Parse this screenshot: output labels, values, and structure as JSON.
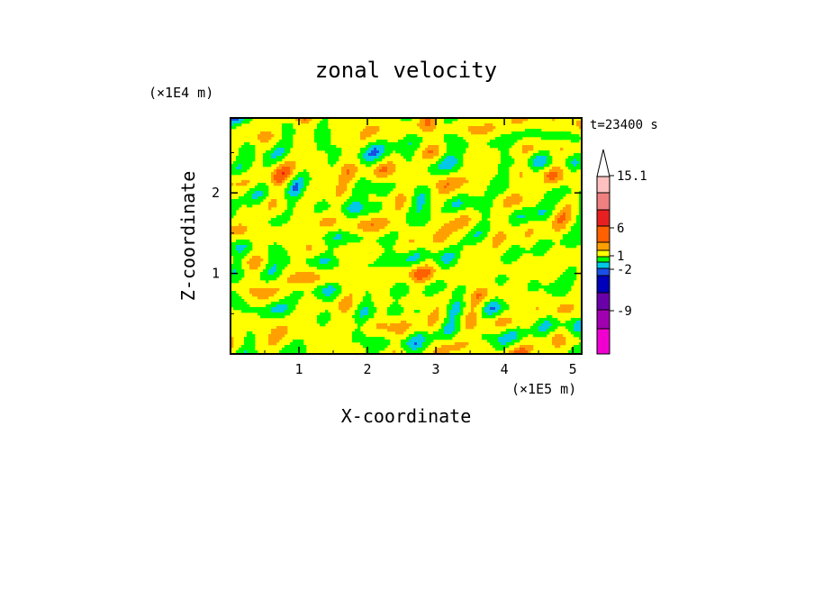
{
  "chart_data": {
    "type": "heatmap",
    "title": "zonal velocity",
    "xlabel": "X-coordinate",
    "ylabel": "Z-coordinate",
    "x_unit": "(×1E5 m)",
    "y_unit": "(×1E4 m)",
    "time_label": "t=23400 s",
    "xlim": [
      0,
      5.13
    ],
    "ylim": [
      0,
      2.93
    ],
    "x_ticks": [
      {
        "value": 1,
        "label": "1"
      },
      {
        "value": 2,
        "label": "2"
      },
      {
        "value": 3,
        "label": "3"
      },
      {
        "value": 4,
        "label": "4"
      },
      {
        "value": 5,
        "label": "5"
      }
    ],
    "y_ticks": [
      {
        "value": 1,
        "label": "1"
      },
      {
        "value": 2,
        "label": "2"
      }
    ],
    "colorbar": {
      "levels": [
        {
          "color": "#f000d0"
        },
        {
          "color": "#a000b0"
        },
        {
          "color": "#6a00a8"
        },
        {
          "color": "#0000b8"
        },
        {
          "color": "#1a4fe6"
        },
        {
          "color": "#00c8e6"
        },
        {
          "color": "#00ff00"
        },
        {
          "color": "#ffff00"
        },
        {
          "color": "#ffa000"
        },
        {
          "color": "#ff6000"
        },
        {
          "color": "#e62020"
        },
        {
          "color": "#f08080"
        },
        {
          "color": "#ffc0c0"
        }
      ],
      "extend_max": true,
      "tick_labels": [
        "15.1",
        "6",
        "1",
        "-2",
        "-9"
      ]
    }
  }
}
